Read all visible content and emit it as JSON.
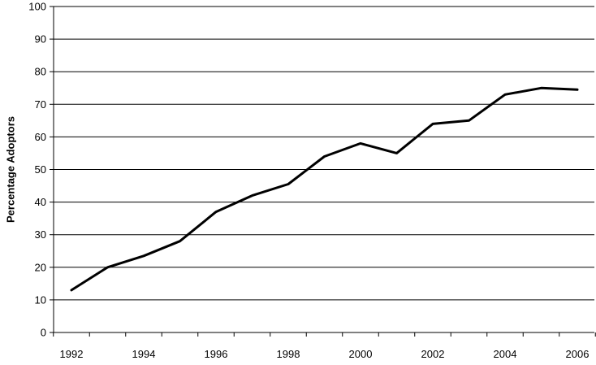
{
  "chart_data": {
    "type": "line",
    "title": "",
    "xlabel": "",
    "ylabel": "Percentage Adoptors",
    "ylim": [
      0,
      100
    ],
    "y_ticks": [
      "0",
      "10",
      "20",
      "30",
      "40",
      "50",
      "60",
      "70",
      "80",
      "90",
      "100"
    ],
    "x_tick_labels": [
      "1992",
      "1994",
      "1996",
      "1998",
      "2000",
      "2002",
      "2004",
      "2006"
    ],
    "grid": "horizontal",
    "line_color": "#000000",
    "series": [
      {
        "x": [
          1992,
          1993,
          1994,
          1995,
          1996,
          1997,
          1998,
          1999,
          2000,
          2001,
          2002,
          2003,
          2004,
          2005,
          2006
        ],
        "values": [
          13,
          20,
          23.5,
          28,
          37,
          42,
          45.5,
          54,
          58,
          55,
          64,
          65,
          73,
          75,
          74.5
        ]
      }
    ]
  }
}
